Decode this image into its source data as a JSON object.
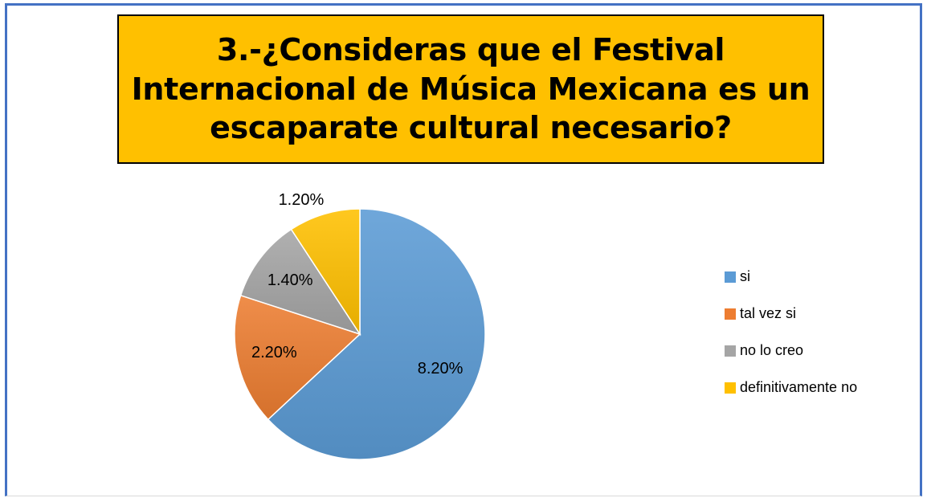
{
  "chart_data": {
    "type": "pie",
    "title": "3.-¿Consideras que el Festival Internacional de Música Mexicana es un escaparate cultural necesario?",
    "categories": [
      "si",
      "tal vez si",
      "no lo creo",
      "definitivamente no"
    ],
    "values": [
      8.2,
      2.2,
      1.4,
      1.2
    ],
    "data_labels": [
      "8.20%",
      "2.20%",
      "1.40%",
      "1.20%"
    ],
    "colors": [
      "#5b9bd5",
      "#ed7d31",
      "#a5a5a5",
      "#ffc000"
    ],
    "legend_position": "right",
    "start_angle": "12 o'clock",
    "direction": "clockwise"
  },
  "colors": {
    "frame_border": "#4472c4",
    "title_background": "#ffc000"
  }
}
